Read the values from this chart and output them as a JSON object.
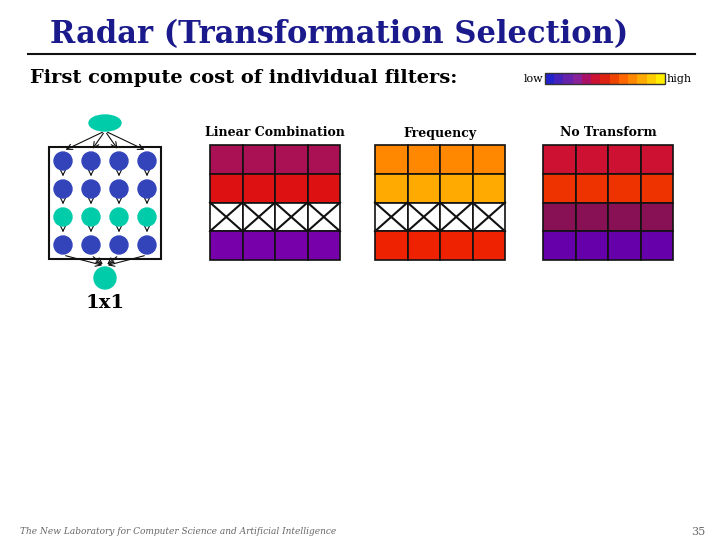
{
  "title": "Radar (Transformation Selection)",
  "subtitle": "First compute cost of individual filters:",
  "footer": "The New Laboratory for Computer Science and Artificial Intelligence",
  "page_num": "35",
  "background_color": "#ffffff",
  "title_color": "#1a1a8c",
  "text_color": "#000000",
  "colorbar_colors": [
    "#2222cc",
    "#4422bb",
    "#6622aa",
    "#882299",
    "#aa1166",
    "#cc1133",
    "#dd2211",
    "#ee4400",
    "#ff6600",
    "#ff8800",
    "#ffaa00",
    "#ffcc00",
    "#ffee00"
  ],
  "lc_grid": [
    [
      "#aa1155",
      "#aa1155",
      "#aa1155",
      "#aa1155"
    ],
    [
      "#dd1111",
      "#dd1111",
      "#dd1111",
      "#dd1111"
    ],
    [
      "#ffffff",
      "#ffffff",
      "#ffffff",
      "#ffffff"
    ],
    [
      "#7700aa",
      "#7700aa",
      "#7700aa",
      "#7700aa"
    ]
  ],
  "freq_grid": [
    [
      "#ff8800",
      "#ff8800",
      "#ff8800",
      "#ff8800"
    ],
    [
      "#ffaa00",
      "#ffaa00",
      "#ffaa00",
      "#ffaa00"
    ],
    [
      "#ffffff",
      "#ffffff",
      "#ffffff",
      "#ffffff"
    ],
    [
      "#ee2200",
      "#ee2200",
      "#ee2200",
      "#ee2200"
    ]
  ],
  "notrans_grid": [
    [
      "#cc1133",
      "#cc1133",
      "#cc1133",
      "#cc1133"
    ],
    [
      "#ee3300",
      "#ee3300",
      "#ee3300",
      "#ee3300"
    ],
    [
      "#881155",
      "#881155",
      "#881155",
      "#881155"
    ],
    [
      "#6600aa",
      "#6600aa",
      "#6600aa",
      "#6600aa"
    ]
  ],
  "lc_label": "Linear Combination",
  "freq_label": "Frequency",
  "notrans_label": "No Transform",
  "low_label": "low",
  "high_label": "high",
  "onex1_label": "1x1",
  "node_color_blue": "#3344bb",
  "node_color_teal": "#00ccaa",
  "arrow_color": "#111111"
}
